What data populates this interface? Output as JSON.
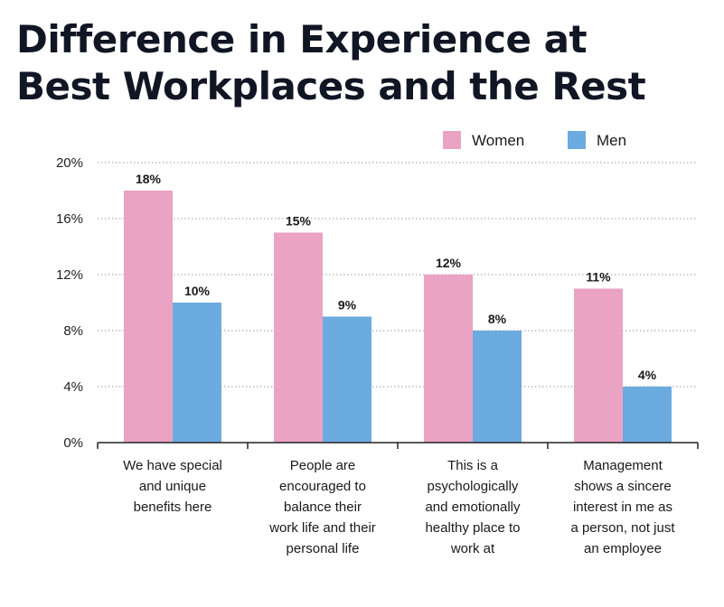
{
  "chart_data": {
    "type": "bar",
    "title": "Difference in Experience at Best Workplaces and the Rest",
    "title_lines": [
      "Difference in Experience at",
      "Best Workplaces and the Rest"
    ],
    "categories": [
      "We have special and unique benefits here",
      "People are encouraged to balance their work life and their personal life",
      "This is a psychologically and emotionally healthy place to work at",
      "Management shows a sincere interest in me as a person, not just an employee"
    ],
    "category_lines": [
      [
        "We have special",
        "and unique",
        "benefits here"
      ],
      [
        "People are",
        "encouraged to",
        "balance their",
        "work life and their",
        "personal life"
      ],
      [
        "This is a",
        "psychologically",
        "and emotionally",
        "healthy place to",
        "work at"
      ],
      [
        "Management",
        "shows a sincere",
        "interest in me as",
        "a person, not just",
        "an employee"
      ]
    ],
    "series": [
      {
        "name": "Women",
        "values": [
          18,
          15,
          12,
          11
        ],
        "labels": [
          "18%",
          "15%",
          "12%",
          "11%"
        ],
        "color": "#eba3c4"
      },
      {
        "name": "Men",
        "values": [
          10,
          9,
          8,
          4
        ],
        "labels": [
          "10%",
          "9%",
          "8%",
          "4%"
        ],
        "color": "#6cabe0"
      }
    ],
    "ylim": [
      0,
      20
    ],
    "yticks": [
      0,
      4,
      8,
      12,
      16,
      20
    ],
    "ytick_labels": [
      "0%",
      "4%",
      "8%",
      "12%",
      "16%",
      "20%"
    ],
    "xlabel": "",
    "ylabel": "",
    "grid": true,
    "legend_position": "top-right"
  }
}
